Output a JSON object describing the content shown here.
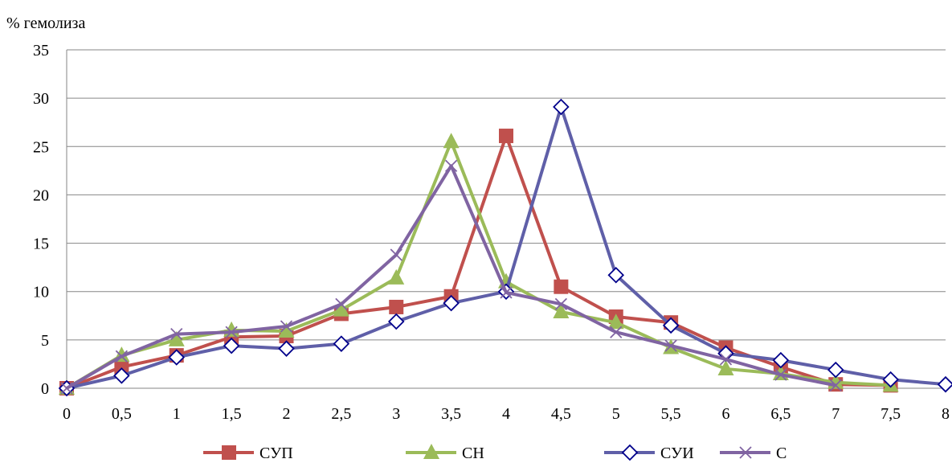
{
  "chart_data": {
    "type": "line",
    "title": "",
    "xlabel": "",
    "ylabel": "% гемолиза",
    "x": [
      0,
      0.5,
      1,
      1.5,
      2,
      2.5,
      3,
      3.5,
      4,
      4.5,
      5,
      5.5,
      6,
      6.5,
      7,
      7.5,
      8
    ],
    "x_tick_labels": [
      "0",
      "0,5",
      "1",
      "1,5",
      "2",
      "2,5",
      "3",
      "3,5",
      "4",
      "4,5",
      "5",
      "5,5",
      "6",
      "6,5",
      "7",
      "7,5",
      "8"
    ],
    "ylim": [
      0,
      35
    ],
    "y_ticks": [
      0,
      5,
      10,
      15,
      20,
      25,
      30,
      35
    ],
    "y_tick_labels": [
      "0",
      "5",
      "10",
      "15",
      "20",
      "25",
      "30",
      "35"
    ],
    "grid": "horizontal",
    "legend_position": "bottom",
    "series": [
      {
        "name": "СУП",
        "color": "#c0504d",
        "marker": "square",
        "x": [
          0,
          0.5,
          1,
          1.5,
          2,
          2.5,
          3,
          3.5,
          4,
          4.5,
          5,
          5.5,
          6,
          6.5,
          7,
          7.5
        ],
        "values": [
          0,
          2.2,
          3.4,
          5.3,
          5.4,
          7.7,
          8.4,
          9.5,
          26.1,
          10.5,
          7.4,
          6.8,
          4.2,
          2.2,
          0.4,
          0.3
        ]
      },
      {
        "name": "СН",
        "color": "#9bbb59",
        "marker": "triangle",
        "x": [
          0,
          0.5,
          1,
          1.5,
          2,
          2.5,
          3,
          3.5,
          4,
          4.5,
          5,
          5.5,
          6,
          6.5,
          7,
          7.5
        ],
        "values": [
          0,
          3.4,
          5.0,
          6.0,
          5.9,
          8.1,
          11.4,
          25.5,
          11.0,
          7.9,
          6.8,
          4.2,
          2.0,
          1.5,
          0.6,
          0.3
        ]
      },
      {
        "name": "СУИ",
        "color": "#5f5fa8",
        "marker": "diamond-open",
        "marker_color": "#00008b",
        "x": [
          0,
          0.5,
          1,
          1.5,
          2,
          2.5,
          3,
          3.5,
          4,
          4.5,
          5,
          5.5,
          6,
          6.5,
          7,
          7.5,
          8
        ],
        "values": [
          0,
          1.3,
          3.2,
          4.4,
          4.1,
          4.6,
          6.9,
          8.8,
          10.0,
          29.1,
          11.7,
          6.5,
          3.6,
          2.9,
          1.9,
          0.9,
          0.4
        ]
      },
      {
        "name": "С",
        "color": "#8064a2",
        "marker": "x",
        "x": [
          0,
          0.5,
          1,
          1.5,
          2,
          2.5,
          3,
          3.5,
          4,
          4.5,
          5,
          5.5,
          6,
          6.5,
          7
        ],
        "values": [
          0,
          3.3,
          5.6,
          5.8,
          6.4,
          8.7,
          13.8,
          23.0,
          9.9,
          8.7,
          5.8,
          4.4,
          3.0,
          1.4,
          0.3
        ]
      }
    ]
  }
}
